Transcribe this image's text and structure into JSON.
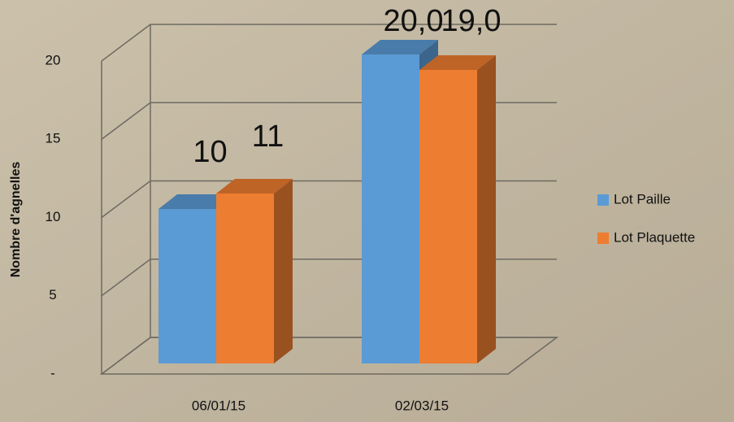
{
  "chart_data": {
    "type": "bar3d",
    "categories": [
      "06/01/15",
      "02/03/15"
    ],
    "series": [
      {
        "name": "Lot Paille",
        "color": "#5b9bd5",
        "values": [
          10,
          20
        ],
        "value_labels": [
          "10",
          "20,0"
        ]
      },
      {
        "name": "Lot Plaquette",
        "color": "#ed7d31",
        "values": [
          11,
          19
        ],
        "value_labels": [
          "11",
          "19,0"
        ]
      }
    ],
    "y_label": "Nombre d'agnelles",
    "ylim": [
      0,
      20
    ],
    "yticks": [
      {
        "value": 0,
        "label": "-"
      },
      5,
      10,
      15,
      20
    ],
    "grid": true,
    "legend": "right"
  }
}
